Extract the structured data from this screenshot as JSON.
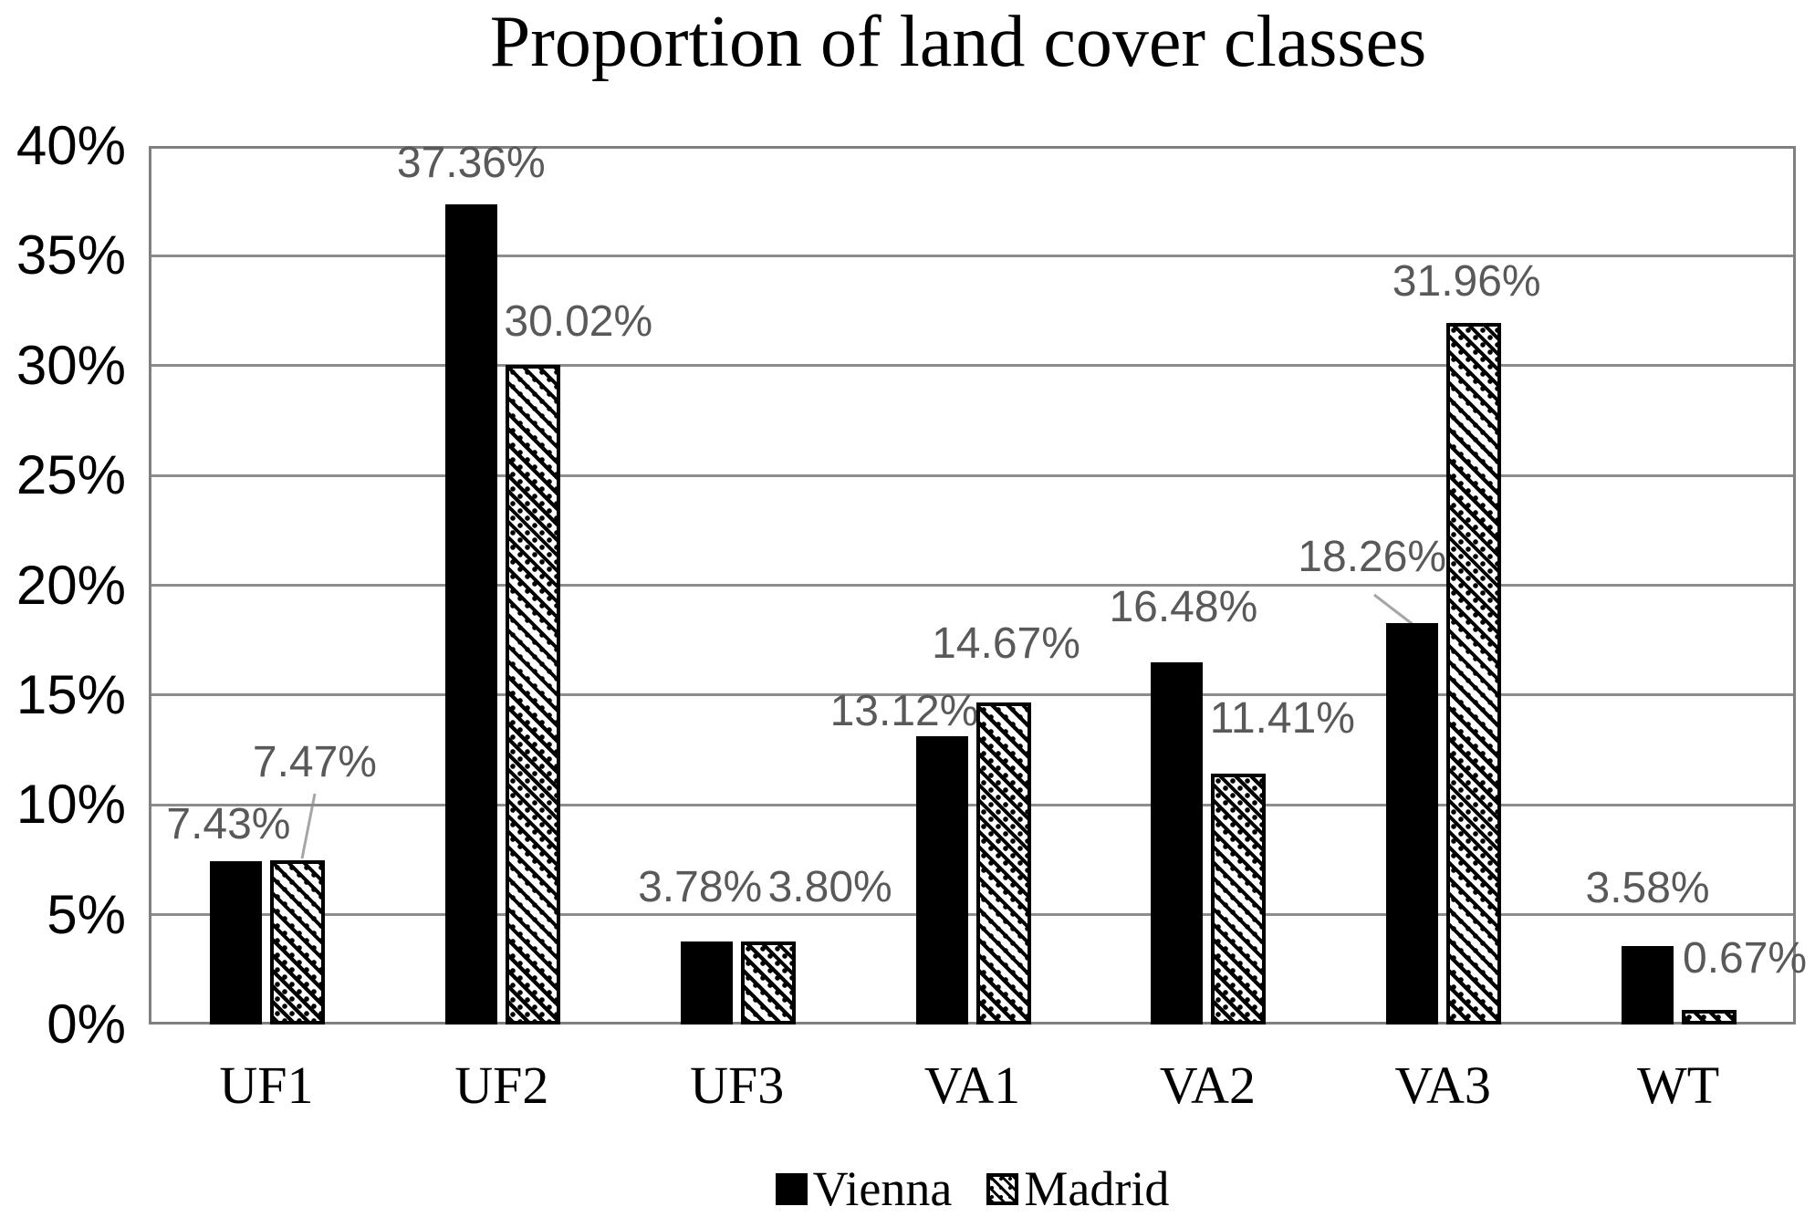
{
  "title": "Proportion of land cover classes",
  "chart_data": {
    "type": "bar",
    "title": "Proportion of land cover classes",
    "categories": [
      "UF1",
      "UF2",
      "UF3",
      "VA1",
      "VA2",
      "VA3",
      "WT"
    ],
    "series": [
      {
        "name": "Vienna",
        "values": [
          7.43,
          37.36,
          3.78,
          13.12,
          16.48,
          18.26,
          3.58
        ],
        "data_labels": [
          "7.43%",
          "37.36%",
          "3.78%",
          "13.12%",
          "16.48%",
          "18.26%",
          "3.58%"
        ],
        "fill": "solid-black"
      },
      {
        "name": "Madrid",
        "values": [
          7.47,
          30.02,
          3.8,
          14.67,
          11.41,
          31.96,
          0.67
        ],
        "data_labels": [
          "7.47%",
          "30.02%",
          "3.80%",
          "14.67%",
          "11.41%",
          "31.96%",
          "0.67%"
        ],
        "fill": "diagonal-hatch-with-dots"
      }
    ],
    "xlabel": "",
    "ylabel": "",
    "ylim": [
      0,
      40
    ],
    "ytick_step": 5,
    "ytick_labels": [
      "0%",
      "5%",
      "10%",
      "15%",
      "20%",
      "25%",
      "30%",
      "35%",
      "40%"
    ],
    "grid": "horizontal",
    "legend_position": "bottom",
    "colors": {
      "vienna_fill": "#000000",
      "madrid_pattern": "#000000",
      "data_label": "#595959",
      "gridline": "#8c8c8c",
      "plot_border": "#808080",
      "leader_line": "#a6a6a6",
      "background": "#ffffff"
    }
  }
}
